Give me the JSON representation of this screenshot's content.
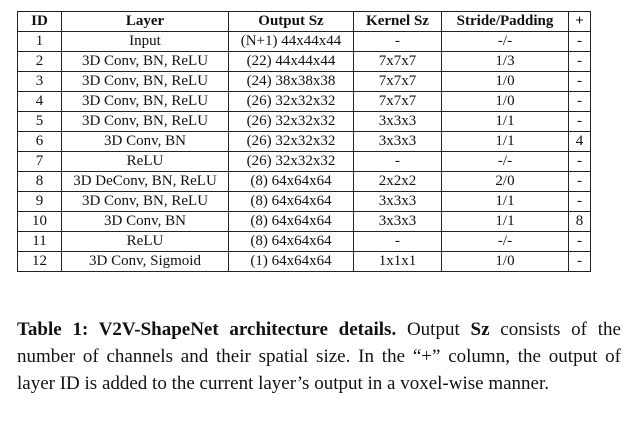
{
  "table": {
    "headers": [
      "ID",
      "Layer",
      "Output Sz",
      "Kernel Sz",
      "Stride/Padding",
      "+"
    ],
    "rows": [
      [
        "1",
        "Input",
        "(N+1) 44x44x44",
        "-",
        "-/-",
        "-"
      ],
      [
        "2",
        "3D Conv, BN, ReLU",
        "(22) 44x44x44",
        "7x7x7",
        "1/3",
        "-"
      ],
      [
        "3",
        "3D Conv, BN, ReLU",
        "(24) 38x38x38",
        "7x7x7",
        "1/0",
        "-"
      ],
      [
        "4",
        "3D Conv, BN, ReLU",
        "(26) 32x32x32",
        "7x7x7",
        "1/0",
        "-"
      ],
      [
        "5",
        "3D Conv, BN, ReLU",
        "(26) 32x32x32",
        "3x3x3",
        "1/1",
        "-"
      ],
      [
        "6",
        "3D Conv, BN",
        "(26) 32x32x32",
        "3x3x3",
        "1/1",
        "4"
      ],
      [
        "7",
        "ReLU",
        "(26) 32x32x32",
        "-",
        "-/-",
        "-"
      ],
      [
        "8",
        "3D DeConv, BN, ReLU",
        "(8) 64x64x64",
        "2x2x2",
        "2/0",
        "-"
      ],
      [
        "9",
        "3D Conv, BN, ReLU",
        "(8) 64x64x64",
        "3x3x3",
        "1/1",
        "-"
      ],
      [
        "10",
        "3D Conv, BN",
        "(8) 64x64x64",
        "3x3x3",
        "1/1",
        "8"
      ],
      [
        "11",
        "ReLU",
        "(8) 64x64x64",
        "-",
        "-/-",
        "-"
      ],
      [
        "12",
        "3D Conv, Sigmoid",
        "(1) 64x64x64",
        "1x1x1",
        "1/0",
        "-"
      ]
    ]
  },
  "caption": {
    "label": "Table 1: V2V-ShapeNet architecture details.",
    "text_before_bold": " Output ",
    "bold_word": "Sz",
    "text_after_bold": " consists of the number of channels and their spatial size. In the “+” column, the output of layer ID is added to the current layer’s output in a voxel-wise manner."
  }
}
